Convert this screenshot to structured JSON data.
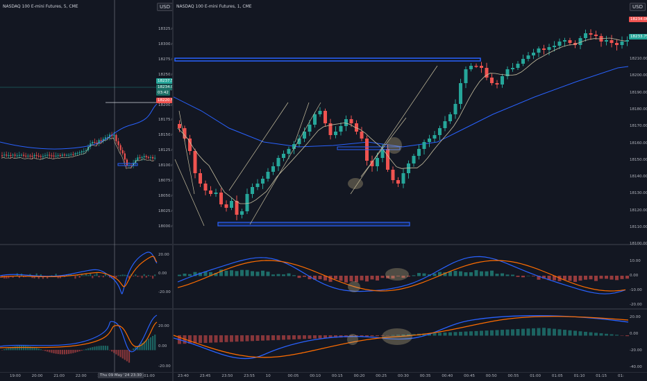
{
  "colors": {
    "bg": "#131722",
    "up": "#26a69a",
    "down": "#ef5350",
    "ma_slow": "#2962ff",
    "ma_fast": "#c9c1a2",
    "macd": "#2962ff",
    "signal": "#ff6d00",
    "box": "#2962ff",
    "arrow": "#c8c0a0",
    "highlight": "#c8b88a",
    "grid": "#1f2330"
  },
  "left": {
    "unit": "USD",
    "price_ticks": [
      "18325.00",
      "18300.00",
      "18275.00",
      "18250.00",
      "18225.00",
      "18200.00",
      "18175.00",
      "18150.00",
      "18125.00",
      "18100.00",
      "18075.00",
      "18050.00",
      "18025.00",
      "18000.00"
    ],
    "price_tags": [
      "18237.50",
      "18234.00",
      "03:42",
      "18220.50"
    ],
    "osc1_ticks": [
      "20.00",
      "0.00",
      "-20.00"
    ],
    "osc2_ticks": [
      "20.00",
      "0.00",
      "-20.00"
    ],
    "time_ticks": [
      "19:00",
      "20:00",
      "21:00",
      "22:00",
      "23:00",
      "01:00"
    ],
    "date_label": "Thu 09 May '24   23:30"
  },
  "right": {
    "title": "NASDAQ 100 E-mini Futures, 1, CME",
    "unit": "USD",
    "price_ticks": [
      "18210.00",
      "18200.00",
      "18190.00",
      "18180.00",
      "18170.00",
      "18160.00",
      "18150.00",
      "18140.00",
      "18130.00",
      "18120.00",
      "18110.00",
      "18100.00"
    ],
    "price_tags": [
      "18234.00",
      "18233.75"
    ],
    "osc1_ticks": [
      "10.00",
      "0.00",
      "-10.00",
      "-20.00"
    ],
    "osc2_ticks": [
      "20.00",
      "0.00",
      "-20.00",
      "-40.00"
    ],
    "time_ticks": [
      "23:40",
      "23:45",
      "23:50",
      "23:55",
      "10",
      "00:05",
      "00:10",
      "00:15",
      "00:20",
      "00:25",
      "00:30",
      "00:35",
      "00:40",
      "00:45",
      "00:50",
      "00:55",
      "01:00",
      "01:05",
      "01:10",
      "01:15",
      "01:"
    ]
  },
  "top_title": "NASDAQ 100 E-mini Futures, 5, CME"
}
